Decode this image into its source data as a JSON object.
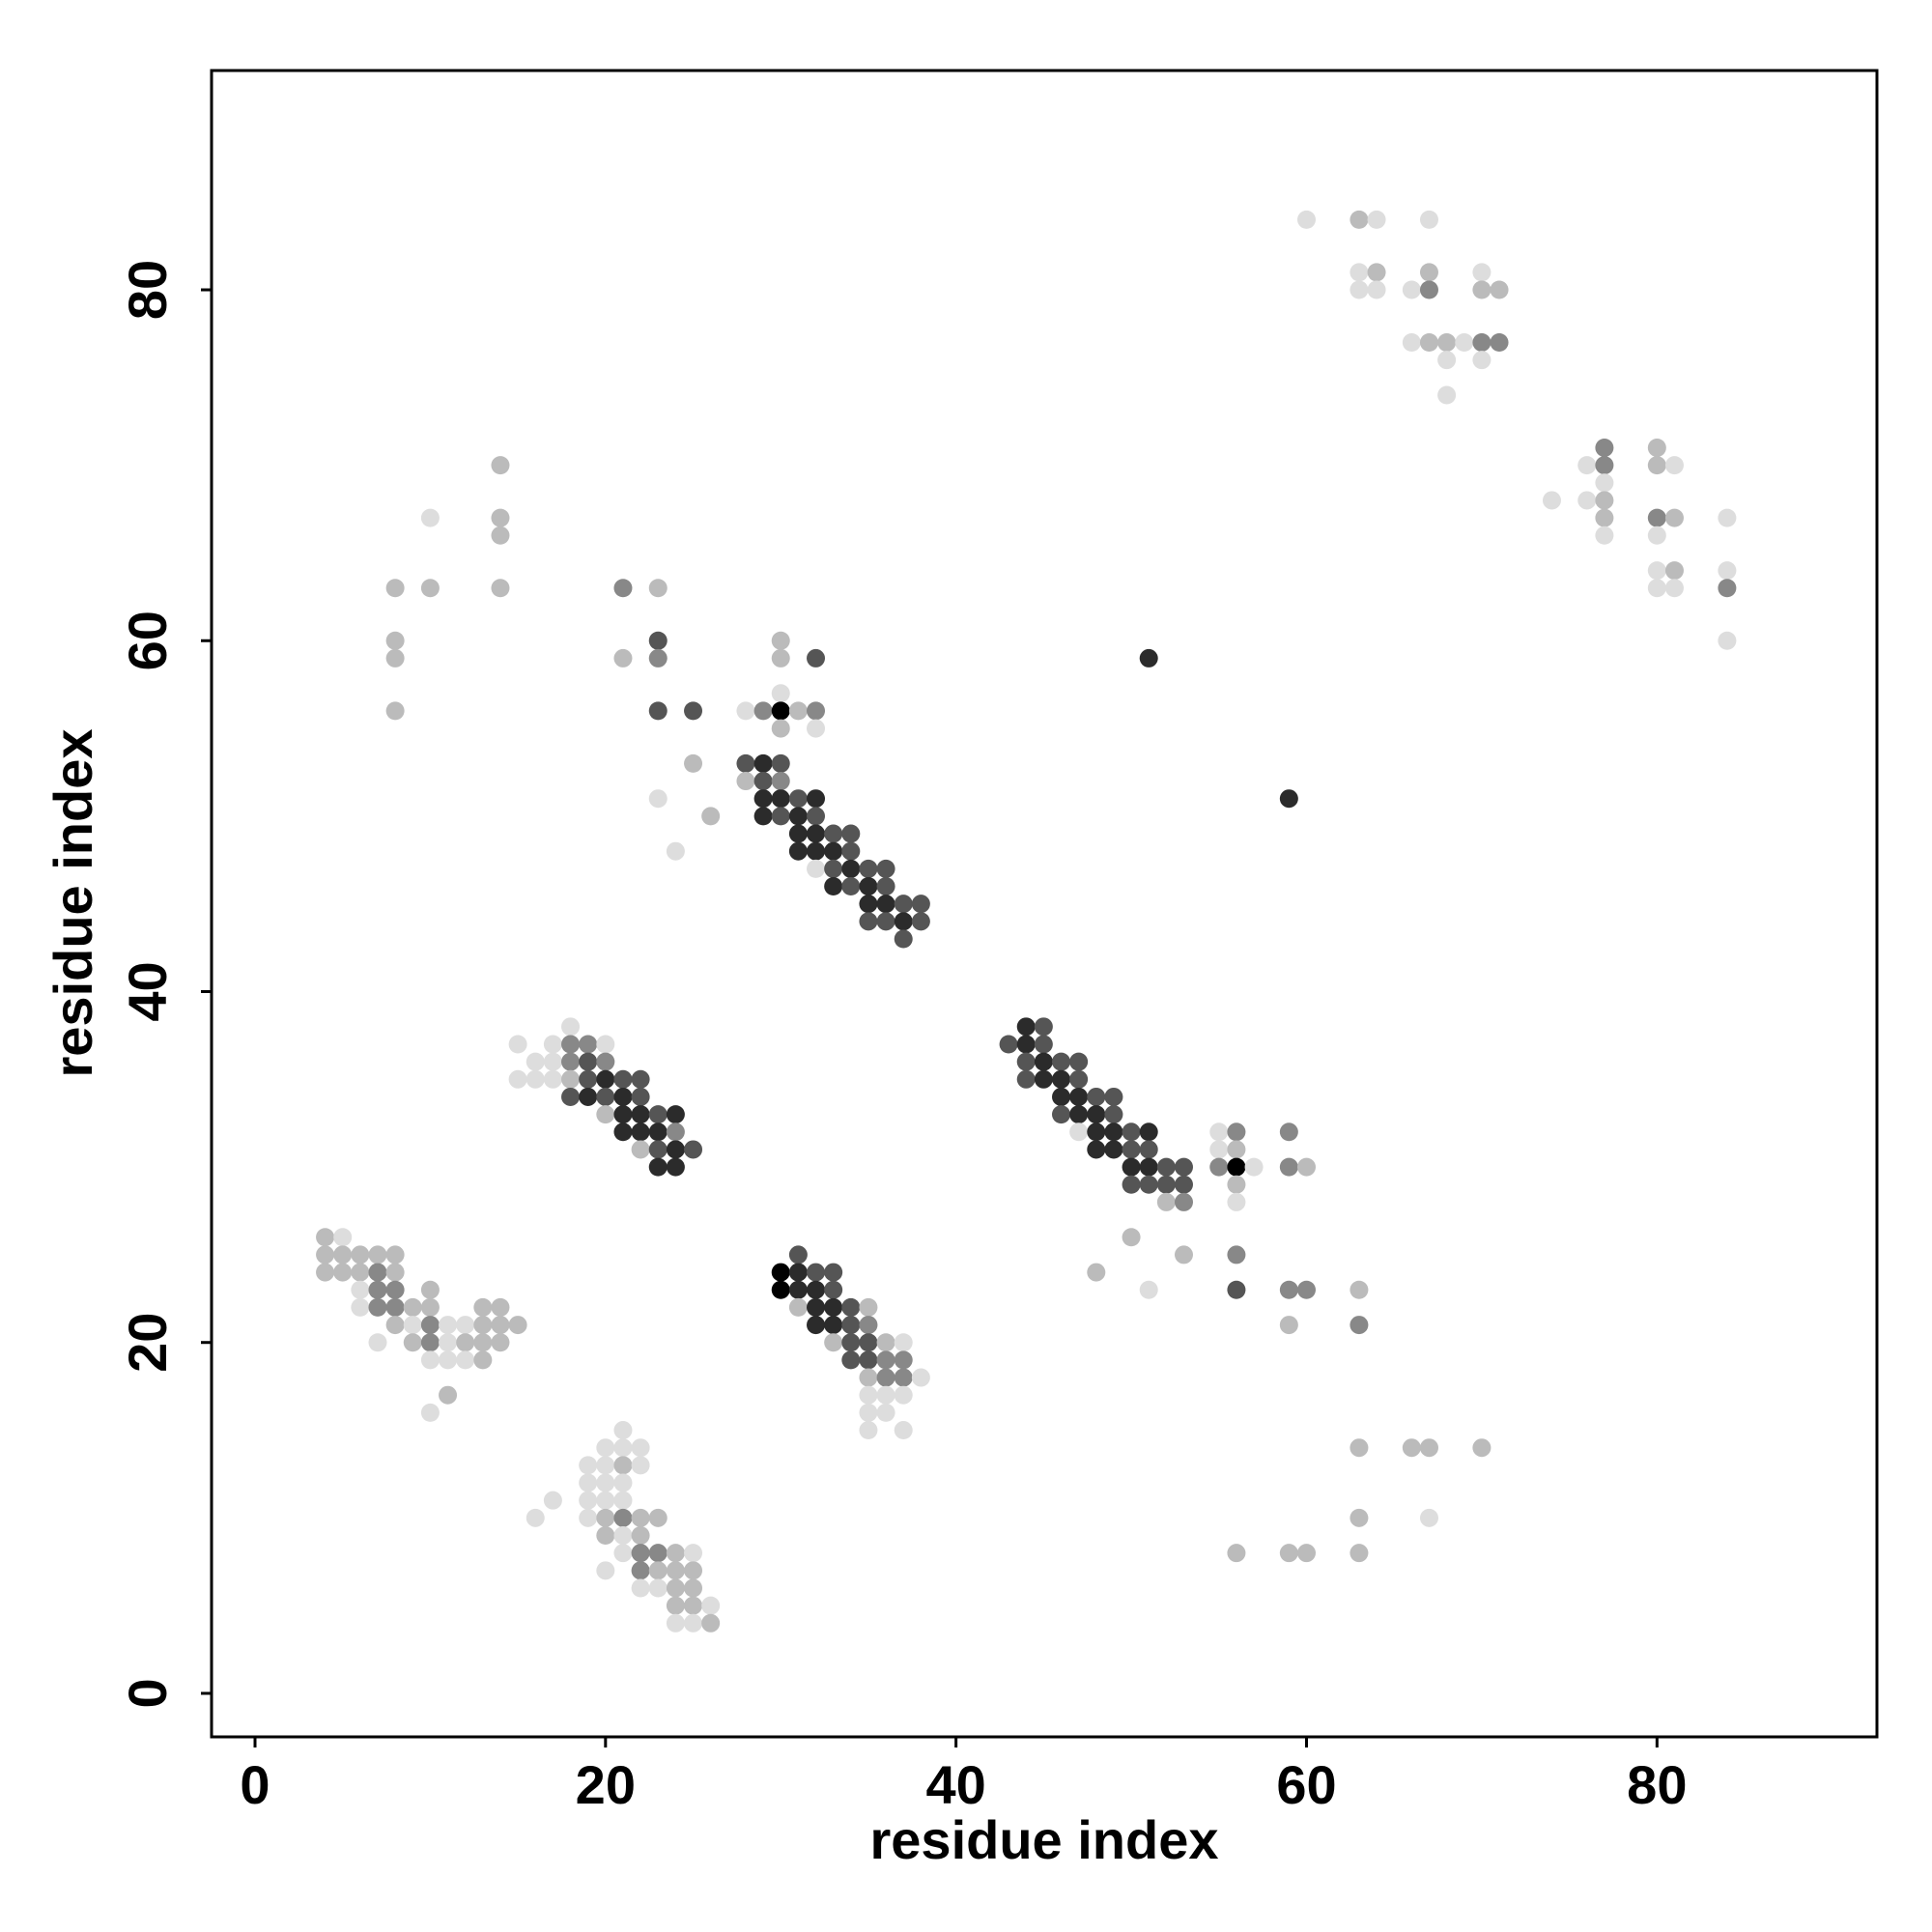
{
  "chart_data": {
    "type": "scatter",
    "xlabel": "residue index",
    "ylabel": "residue index",
    "xlim": [
      -2.48,
      92.55
    ],
    "ylim": [
      -2.48,
      92.5
    ],
    "xticks": [
      0,
      20,
      40,
      60,
      80
    ],
    "yticks": [
      0,
      20,
      40,
      60,
      80
    ],
    "series": [
      {
        "x": [
          60,
          63,
          64,
          67,
          63,
          64,
          67,
          70,
          63,
          64,
          66,
          67,
          70,
          71,
          66,
          67,
          68,
          69,
          70,
          71,
          68,
          70,
          68,
          77,
          80,
          76,
          77,
          80,
          81,
          77,
          74,
          76,
          77,
          77,
          80,
          81,
          84,
          77,
          80,
          80,
          81,
          84,
          80,
          81,
          84,
          84,
          14,
          10,
          14,
          14,
          8,
          10,
          14,
          21,
          23,
          8,
          23,
          30,
          8,
          21,
          23,
          30,
          32,
          51,
          30,
          8,
          23,
          25,
          28,
          29,
          30,
          31,
          32,
          30,
          32,
          25,
          28,
          29,
          30,
          28,
          29,
          30,
          23,
          29,
          30,
          31,
          32,
          59,
          26,
          29,
          30,
          31,
          32,
          31,
          32,
          33,
          34,
          24,
          31,
          32,
          33,
          34,
          32,
          33,
          34,
          35,
          36,
          33,
          34,
          35,
          36,
          35,
          36,
          37,
          38,
          35,
          36,
          37,
          38,
          37,
          18,
          44,
          45,
          15,
          17,
          18,
          19,
          20,
          43,
          44,
          45,
          16,
          17,
          18,
          19,
          20,
          44,
          45,
          46,
          47,
          15,
          16,
          17,
          18,
          19,
          20,
          21,
          22,
          44,
          45,
          46,
          47,
          18,
          19,
          20,
          21,
          22,
          46,
          47,
          48,
          49,
          20,
          21,
          22,
          23,
          24,
          46,
          47,
          48,
          49,
          21,
          22,
          23,
          24,
          47,
          48,
          49,
          50,
          51,
          55,
          56,
          59,
          22,
          23,
          24,
          25,
          48,
          49,
          50,
          51,
          55,
          56,
          23,
          24,
          50,
          51,
          52,
          53,
          55,
          56,
          57,
          59,
          60,
          50,
          51,
          52,
          53,
          56,
          52,
          53,
          56,
          4,
          5,
          50,
          4,
          5,
          6,
          7,
          8,
          31,
          53,
          56,
          4,
          5,
          6,
          7,
          8,
          30,
          31,
          32,
          33,
          48,
          6,
          7,
          8,
          10,
          30,
          31,
          32,
          33,
          51,
          56,
          59,
          60,
          63,
          6,
          7,
          8,
          9,
          10,
          13,
          14,
          31,
          32,
          33,
          34,
          35,
          8,
          9,
          10,
          11,
          12,
          13,
          14,
          15,
          32,
          33,
          34,
          35,
          59,
          63,
          7,
          9,
          10,
          11,
          12,
          13,
          14,
          33,
          34,
          35,
          36,
          37,
          10,
          11,
          12,
          13,
          34,
          35,
          36,
          37,
          35,
          36,
          37,
          38,
          11,
          35,
          36,
          37,
          10,
          35,
          36,
          21,
          35,
          37,
          20,
          21,
          22,
          63,
          66,
          67,
          70,
          19,
          20,
          21,
          22,
          19,
          20,
          21,
          17,
          19,
          20,
          21,
          16,
          19,
          20,
          21,
          22,
          23,
          63,
          67,
          20,
          21,
          22,
          21,
          22,
          23,
          24,
          25,
          56,
          59,
          60,
          63,
          20,
          22,
          23,
          24,
          25,
          22,
          23,
          24,
          25,
          24,
          25,
          26,
          24,
          25,
          26
        ],
        "y": [
          84,
          84,
          84,
          84,
          81,
          81,
          81,
          81,
          80,
          80,
          80,
          80,
          80,
          80,
          77,
          77,
          77,
          77,
          77,
          77,
          76,
          76,
          74,
          71,
          71,
          70,
          70,
          70,
          70,
          69,
          68,
          68,
          68,
          67,
          67,
          67,
          67,
          66,
          66,
          64,
          64,
          64,
          63,
          63,
          63,
          60,
          70,
          67,
          67,
          66,
          63,
          63,
          63,
          63,
          63,
          60,
          60,
          60,
          59,
          59,
          59,
          59,
          59,
          59,
          57,
          56,
          56,
          56,
          56,
          56,
          56,
          56,
          56,
          55,
          55,
          53,
          53,
          53,
          53,
          52,
          52,
          52,
          51,
          51,
          51,
          51,
          51,
          51,
          50,
          50,
          50,
          50,
          50,
          49,
          49,
          49,
          49,
          48,
          48,
          48,
          48,
          48,
          47,
          47,
          47,
          47,
          47,
          46,
          46,
          46,
          46,
          45,
          45,
          45,
          45,
          44,
          44,
          44,
          44,
          43,
          38,
          38,
          38,
          37,
          37,
          37,
          37,
          37,
          37,
          37,
          37,
          36,
          36,
          36,
          36,
          36,
          36,
          36,
          36,
          36,
          35,
          35,
          35,
          35,
          35,
          35,
          35,
          35,
          35,
          35,
          35,
          35,
          34,
          34,
          34,
          34,
          34,
          34,
          34,
          34,
          34,
          33,
          33,
          33,
          33,
          33,
          33,
          33,
          33,
          33,
          32,
          32,
          32,
          32,
          32,
          32,
          32,
          32,
          32,
          32,
          32,
          32,
          31,
          31,
          31,
          31,
          31,
          31,
          31,
          31,
          31,
          31,
          30,
          30,
          30,
          30,
          30,
          30,
          30,
          30,
          30,
          30,
          30,
          29,
          29,
          29,
          29,
          29,
          28,
          28,
          28,
          26,
          26,
          26,
          25,
          25,
          25,
          25,
          25,
          25,
          25,
          25,
          24,
          24,
          24,
          24,
          24,
          24,
          24,
          24,
          24,
          24,
          23,
          23,
          23,
          23,
          23,
          23,
          23,
          23,
          23,
          23,
          23,
          23,
          23,
          22,
          22,
          22,
          22,
          22,
          22,
          22,
          22,
          22,
          22,
          22,
          22,
          21,
          21,
          21,
          21,
          21,
          21,
          21,
          21,
          21,
          21,
          21,
          21,
          21,
          21,
          20,
          20,
          20,
          20,
          20,
          20,
          20,
          20,
          20,
          20,
          20,
          20,
          19,
          19,
          19,
          19,
          19,
          19,
          19,
          19,
          18,
          18,
          18,
          18,
          17,
          17,
          17,
          17,
          16,
          16,
          16,
          15,
          15,
          15,
          14,
          14,
          14,
          14,
          14,
          14,
          14,
          13,
          13,
          13,
          13,
          12,
          12,
          12,
          11,
          11,
          11,
          11,
          10,
          10,
          10,
          10,
          10,
          10,
          10,
          10,
          9,
          9,
          9,
          8,
          8,
          8,
          8,
          8,
          8,
          8,
          8,
          8,
          7,
          7,
          7,
          7,
          7,
          6,
          6,
          6,
          6,
          5,
          5,
          5,
          4,
          4,
          4
        ],
        "colors": [
          "#ddd",
          "#bbb",
          "#ddd",
          "#ddd",
          "#ddd",
          "#bbb",
          "#bbb",
          "#ddd",
          "#ddd",
          "#ddd",
          "#ddd",
          "#888",
          "#bbb",
          "#bbb",
          "#ddd",
          "#bbb",
          "#bbb",
          "#ddd",
          "#888",
          "#888",
          "#ddd",
          "#ddd",
          "#ddd",
          "#888",
          "#bbb",
          "#ddd",
          "#888",
          "#bbb",
          "#ddd",
          "#ddd",
          "#ddd",
          "#ddd",
          "#bbb",
          "#bbb",
          "#888",
          "#bbb",
          "#ddd",
          "#ddd",
          "#ddd",
          "#ddd",
          "#bbb",
          "#ddd",
          "#ddd",
          "#ddd",
          "#888",
          "#ddd",
          "#bbb",
          "#ddd",
          "#bbb",
          "#bbb",
          "#bbb",
          "#bbb",
          "#bbb",
          "#888",
          "#bbb",
          "#bbb",
          "#555",
          "#bbb",
          "#bbb",
          "#bbb",
          "#888",
          "#bbb",
          "#555",
          "#2b2b2b",
          "#ddd",
          "#bbb",
          "#555",
          "#555",
          "#ddd",
          "#888",
          "#000",
          "#bbb",
          "#888",
          "#bbb",
          "#ddd",
          "#bbb",
          "#555",
          "#2b2b2b",
          "#555",
          "#bbb",
          "#555",
          "#888",
          "#ddd",
          "#2b2b2b",
          "#2b2b2b",
          "#555",
          "#2b2b2b",
          "#2b2b2b",
          "#bbb",
          "#2b2b2b",
          "#555",
          "#2b2b2b",
          "#555",
          "#2b2b2b",
          "#2b2b2b",
          "#555",
          "#555",
          "#ddd",
          "#2b2b2b",
          "#2b2b2b",
          "#2b2b2b",
          "#555",
          "#ddd",
          "#555",
          "#2b2b2b",
          "#555",
          "#555",
          "#2b2b2b",
          "#555",
          "#2b2b2b",
          "#555",
          "#2b2b2b",
          "#2b2b2b",
          "#555",
          "#555",
          "#555",
          "#555",
          "#2b2b2b",
          "#555",
          "#555",
          "#ddd",
          "#2b2b2b",
          "#555",
          "#ddd",
          "#ddd",
          "#888",
          "#888",
          "#ddd",
          "#555",
          "#2b2b2b",
          "#555",
          "#ddd",
          "#ddd",
          "#888",
          "#555",
          "#888",
          "#555",
          "#2b2b2b",
          "#555",
          "#555",
          "#ddd",
          "#ddd",
          "#ddd",
          "#bbb",
          "#555",
          "#2b2b2b",
          "#555",
          "#555",
          "#555",
          "#2b2b2b",
          "#2b2b2b",
          "#555",
          "#555",
          "#2b2b2b",
          "#555",
          "#2b2b2b",
          "#555",
          "#2b2b2b",
          "#2b2b2b",
          "#555",
          "#555",
          "#bbb",
          "#2b2b2b",
          "#2b2b2b",
          "#555",
          "#2b2b2b",
          "#555",
          "#2b2b2b",
          "#2b2b2b",
          "#555",
          "#2b2b2b",
          "#2b2b2b",
          "#2b2b2b",
          "#888",
          "#ddd",
          "#2b2b2b",
          "#2b2b2b",
          "#555",
          "#2b2b2b",
          "#ddd",
          "#888",
          "#888",
          "#bbb",
          "#555",
          "#2b2b2b",
          "#555",
          "#2b2b2b",
          "#2b2b2b",
          "#555",
          "#555",
          "#ddd",
          "#bbb",
          "#2b2b2b",
          "#2b2b2b",
          "#2b2b2b",
          "#2b2b2b",
          "#555",
          "#555",
          "#888",
          "#000",
          "#ddd",
          "#888",
          "#bbb",
          "#555",
          "#555",
          "#555",
          "#555",
          "#bbb",
          "#bbb",
          "#888",
          "#ddd",
          "#bbb",
          "#ddd",
          "#bbb",
          "#bbb",
          "#bbb",
          "#bbb",
          "#bbb",
          "#bbb",
          "#555",
          "#bbb",
          "#888",
          "#bbb",
          "#bbb",
          "#bbb",
          "#888",
          "#bbb",
          "#000",
          "#2b2b2b",
          "#555",
          "#555",
          "#bbb",
          "#ddd",
          "#888",
          "#888",
          "#bbb",
          "#000",
          "#2b2b2b",
          "#2b2b2b",
          "#555",
          "#ddd",
          "#555",
          "#888",
          "#888",
          "#bbb",
          "#ddd",
          "#888",
          "#888",
          "#bbb",
          "#bbb",
          "#bbb",
          "#bbb",
          "#bbb",
          "#2b2b2b",
          "#2b2b2b",
          "#555",
          "#bbb",
          "#bbb",
          "#ddd",
          "#888",
          "#ddd",
          "#ddd",
          "#bbb",
          "#bbb",
          "#bbb",
          "#2b2b2b",
          "#2b2b2b",
          "#555",
          "#888",
          "#bbb",
          "#888",
          "#ddd",
          "#bbb",
          "#888",
          "#ddd",
          "#bbb",
          "#bbb",
          "#bbb",
          "#bbb",
          "#555",
          "#555",
          "#bbb",
          "#ddd",
          "#ddd",
          "#ddd",
          "#ddd",
          "#bbb",
          "#555",
          "#555",
          "#888",
          "#888",
          "#bbb",
          "#888",
          "#888",
          "#ddd",
          "#bbb",
          "#ddd",
          "#ddd",
          "#ddd",
          "#ddd",
          "#ddd",
          "#ddd",
          "#ddd",
          "#ddd",
          "#ddd",
          "#ddd",
          "#ddd",
          "#ddd",
          "#bbb",
          "#bbb",
          "#bbb",
          "#bbb",
          "#ddd",
          "#ddd",
          "#bbb",
          "#ddd",
          "#ddd",
          "#ddd",
          "#ddd",
          "#ddd",
          "#ddd",
          "#ddd",
          "#ddd",
          "#ddd",
          "#ddd",
          "#bbb",
          "#888",
          "#bbb",
          "#bbb",
          "#bbb",
          "#ddd",
          "#bbb",
          "#ddd",
          "#bbb",
          "#ddd",
          "#888",
          "#888",
          "#bbb",
          "#ddd",
          "#bbb",
          "#bbb",
          "#bbb",
          "#bbb",
          "#ddd",
          "#888",
          "#bbb",
          "#bbb",
          "#bbb",
          "#ddd",
          "#ddd",
          "#bbb",
          "#bbb",
          "#bbb",
          "#bbb",
          "#ddd",
          "#ddd",
          "#ddd",
          "#bbb"
        ]
      }
    ]
  }
}
